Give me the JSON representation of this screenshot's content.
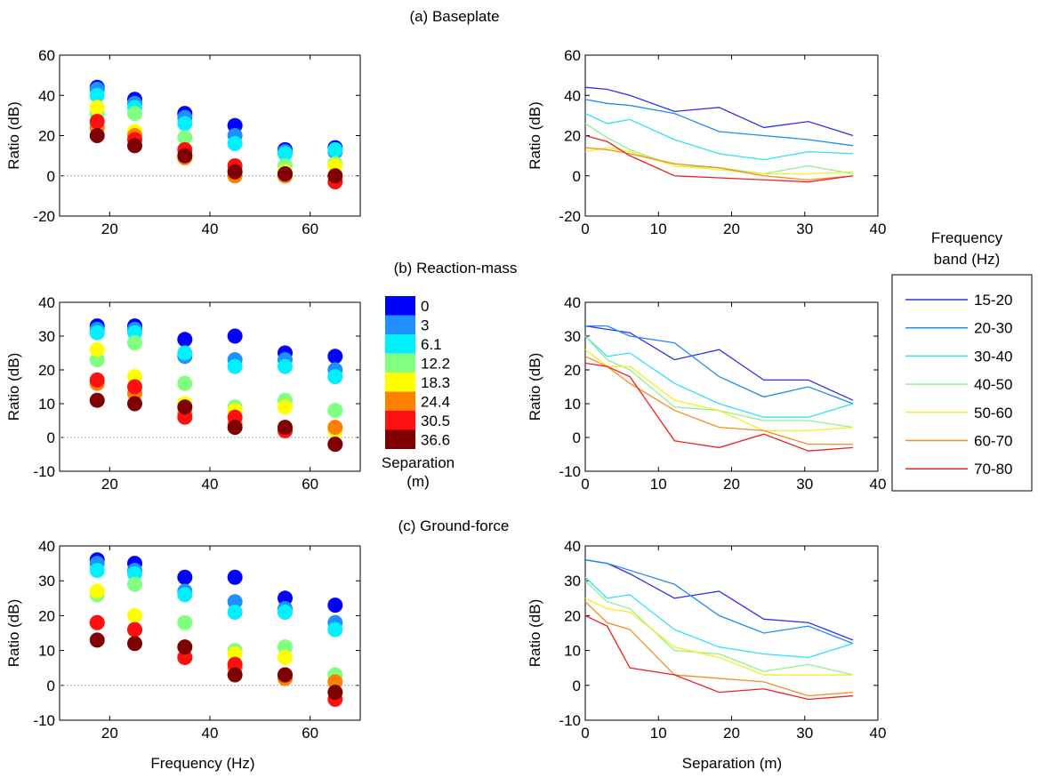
{
  "figure": {
    "x_label_left": "Frequency (Hz)",
    "x_label_right": "Separation (m)",
    "y_label": "Ratio (dB)",
    "separation_legend": {
      "title_line1": "Separation",
      "title_line2": "(m)",
      "entries": [
        {
          "label": "0",
          "color": "#0000ff"
        },
        {
          "label": "3",
          "color": "#1e90ff"
        },
        {
          "label": "6.1",
          "color": "#00f0ff"
        },
        {
          "label": "12.2",
          "color": "#80ff80"
        },
        {
          "label": "18.3",
          "color": "#ffff00"
        },
        {
          "label": "24.4",
          "color": "#ff8000"
        },
        {
          "label": "30.5",
          "color": "#ff1010"
        },
        {
          "label": "36.6",
          "color": "#7f0000"
        }
      ]
    },
    "frequency_legend": {
      "title_line1": "Frequency",
      "title_line2": "band (Hz)",
      "entries": [
        {
          "label": "15-20",
          "color": "#3030f0"
        },
        {
          "label": "20-30",
          "color": "#1e8cf0"
        },
        {
          "label": "30-40",
          "color": "#30e0f8"
        },
        {
          "label": "40-50",
          "color": "#90f090"
        },
        {
          "label": "50-60",
          "color": "#f0f020"
        },
        {
          "label": "60-70",
          "color": "#f09020"
        },
        {
          "label": "70-80",
          "color": "#f02020"
        }
      ]
    }
  },
  "chart_data": [
    {
      "panel": "(a) Baseplate",
      "title": "(a) Baseplate",
      "ylim": [
        -20,
        60
      ],
      "yticks": [
        -20,
        0,
        20,
        40,
        60
      ],
      "left": {
        "type": "scatter",
        "xlabel": "",
        "ylabel": "Ratio (dB)",
        "xlim": [
          10,
          70
        ],
        "xticks": [
          20,
          40,
          60
        ],
        "x": [
          17.5,
          25,
          35,
          45,
          55,
          65
        ],
        "series": [
          {
            "name": "0",
            "values": [
              44,
              38,
              31,
              25,
              13,
              14
            ]
          },
          {
            "name": "3",
            "values": [
              43,
              36,
              29,
              20,
              12,
              12
            ]
          },
          {
            "name": "6.1",
            "values": [
              40,
              34,
              26,
              16,
              11,
              13
            ]
          },
          {
            "name": "12.2",
            "values": [
              31,
              31,
              19,
              3,
              5,
              6
            ]
          },
          {
            "name": "18.3",
            "values": [
              34,
              22,
              11,
              2,
              2,
              5
            ]
          },
          {
            "name": "24.4",
            "values": [
              24,
              20,
              9,
              0,
              0,
              0
            ]
          },
          {
            "name": "30.5",
            "values": [
              27,
              18,
              13,
              5,
              1,
              -3
            ]
          },
          {
            "name": "36.6",
            "values": [
              20,
              15,
              10,
              2,
              1,
              0
            ]
          }
        ]
      },
      "right": {
        "type": "line",
        "xlabel": "",
        "ylabel": "Ratio (dB)",
        "xlim": [
          0,
          40
        ],
        "xticks": [
          0,
          10,
          20,
          30,
          40
        ],
        "x": [
          0,
          3,
          6.1,
          12.2,
          18.3,
          24.4,
          30.5,
          36.6
        ],
        "series": [
          {
            "name": "15-20",
            "values": [
              44,
              43,
              40,
              32,
              34,
              24,
              27,
              20
            ]
          },
          {
            "name": "20-30",
            "values": [
              38,
              36,
              35,
              31,
              22,
              20,
              18,
              15
            ]
          },
          {
            "name": "30-40",
            "values": [
              31,
              26,
              28,
              18,
              11,
              8,
              12,
              11
            ]
          },
          {
            "name": "40-50",
            "values": [
              26,
              19,
              13,
              5,
              4,
              1,
              5,
              1
            ]
          },
          {
            "name": "50-60",
            "values": [
              12,
              14,
              12,
              5,
              3,
              1,
              1,
              2
            ]
          },
          {
            "name": "60-70",
            "values": [
              14,
              13,
              11,
              6,
              4,
              0,
              -2,
              0
            ]
          },
          {
            "name": "70-80",
            "values": [
              20,
              17,
              10,
              0,
              -1,
              -2,
              -3,
              0
            ]
          }
        ]
      }
    },
    {
      "panel": "(b) Reaction-mass",
      "title": "(b) Reaction-mass",
      "ylim": [
        -10,
        40
      ],
      "yticks": [
        -10,
        0,
        10,
        20,
        30,
        40
      ],
      "left": {
        "type": "scatter",
        "xlabel": "",
        "ylabel": "Ratio (dB)",
        "xlim": [
          10,
          70
        ],
        "xticks": [
          20,
          40,
          60
        ],
        "x": [
          17.5,
          25,
          35,
          45,
          55,
          65
        ],
        "series": [
          {
            "name": "0",
            "values": [
              33,
              33,
              29,
              30,
              25,
              24
            ]
          },
          {
            "name": "3",
            "values": [
              32,
              32,
              24,
              23,
              23,
              20
            ]
          },
          {
            "name": "6.1",
            "values": [
              31,
              31,
              25,
              21,
              21,
              18
            ]
          },
          {
            "name": "12.2",
            "values": [
              23,
              28,
              16,
              9,
              11,
              8
            ]
          },
          {
            "name": "18.3",
            "values": [
              26,
              18,
              10,
              8,
              9,
              2
            ]
          },
          {
            "name": "24.4",
            "values": [
              16,
              13,
              7,
              4,
              2,
              3
            ]
          },
          {
            "name": "30.5",
            "values": [
              17,
              15,
              6,
              6,
              2,
              -2
            ]
          },
          {
            "name": "36.6",
            "values": [
              11,
              10,
              9,
              3,
              3,
              -2
            ]
          }
        ]
      },
      "right": {
        "type": "line",
        "xlabel": "",
        "ylabel": "Ratio (dB)",
        "xlim": [
          0,
          40
        ],
        "xticks": [
          0,
          10,
          20,
          30,
          40
        ],
        "x": [
          0,
          3,
          6.1,
          12.2,
          18.3,
          24.4,
          30.5,
          36.6
        ],
        "series": [
          {
            "name": "15-20",
            "values": [
              33,
              32,
              31,
              23,
              26,
              17,
              17,
              11
            ]
          },
          {
            "name": "20-30",
            "values": [
              33,
              33,
              30,
              28,
              18,
              12,
              15,
              10
            ]
          },
          {
            "name": "30-40",
            "values": [
              30,
              24,
              25,
              16,
              10,
              6,
              6,
              10
            ]
          },
          {
            "name": "40-50",
            "values": [
              30,
              23,
              20,
              9,
              8,
              5,
              5,
              3
            ]
          },
          {
            "name": "50-60",
            "values": [
              26,
              21,
              21,
              11,
              8,
              2,
              2,
              3
            ]
          },
          {
            "name": "60-70",
            "values": [
              24,
              21,
              16,
              8,
              3,
              2,
              -2,
              -2
            ]
          },
          {
            "name": "70-80",
            "values": [
              22,
              21,
              18,
              -1,
              -3,
              1,
              -4,
              -3
            ]
          }
        ]
      }
    },
    {
      "panel": "(c) Ground-force",
      "title": "(c) Ground-force",
      "ylim": [
        -10,
        40
      ],
      "yticks": [
        -10,
        0,
        10,
        20,
        30,
        40
      ],
      "left": {
        "type": "scatter",
        "xlabel": "Frequency (Hz)",
        "ylabel": "Ratio (dB)",
        "xlim": [
          10,
          70
        ],
        "xticks": [
          20,
          40,
          60
        ],
        "x": [
          17.5,
          25,
          35,
          45,
          55,
          65
        ],
        "series": [
          {
            "name": "0",
            "values": [
              36,
              35,
              31,
              31,
              25,
              23
            ]
          },
          {
            "name": "3",
            "values": [
              35,
              33,
              27,
              24,
              22,
              18
            ]
          },
          {
            "name": "6.1",
            "values": [
              33,
              32,
              26,
              21,
              21,
              16
            ]
          },
          {
            "name": "12.2",
            "values": [
              26,
              29,
              18,
              10,
              11,
              3
            ]
          },
          {
            "name": "18.3",
            "values": [
              27,
              20,
              11,
              9,
              8,
              1
            ]
          },
          {
            "name": "24.4",
            "values": [
              18,
              16,
              8,
              5,
              2,
              1
            ]
          },
          {
            "name": "30.5",
            "values": [
              18,
              16,
              8,
              6,
              3,
              -4
            ]
          },
          {
            "name": "36.6",
            "values": [
              13,
              12,
              11,
              3,
              3,
              -2
            ]
          }
        ]
      },
      "right": {
        "type": "line",
        "xlabel": "Separation (m)",
        "ylabel": "Ratio (dB)",
        "xlim": [
          0,
          40
        ],
        "xticks": [
          0,
          10,
          20,
          30,
          40
        ],
        "x": [
          0,
          3,
          6.1,
          12.2,
          18.3,
          24.4,
          30.5,
          36.6
        ],
        "series": [
          {
            "name": "15-20",
            "values": [
              36,
              35,
              32,
              25,
              27,
              19,
              18,
              13
            ]
          },
          {
            "name": "20-30",
            "values": [
              36,
              35,
              33,
              29,
              20,
              15,
              17,
              12
            ]
          },
          {
            "name": "30-40",
            "values": [
              31,
              25,
              26,
              16,
              11,
              9,
              8,
              12
            ]
          },
          {
            "name": "40-50",
            "values": [
              30,
              24,
              22,
              10,
              9,
              4,
              6,
              3
            ]
          },
          {
            "name": "50-60",
            "values": [
              25,
              22,
              21,
              11,
              8,
              3,
              3,
              3
            ]
          },
          {
            "name": "60-70",
            "values": [
              24,
              18,
              16,
              3,
              2,
              1,
              -3,
              -2
            ]
          },
          {
            "name": "70-80",
            "values": [
              20,
              17,
              5,
              3,
              -2,
              -1,
              -4,
              -3
            ]
          }
        ]
      }
    }
  ]
}
